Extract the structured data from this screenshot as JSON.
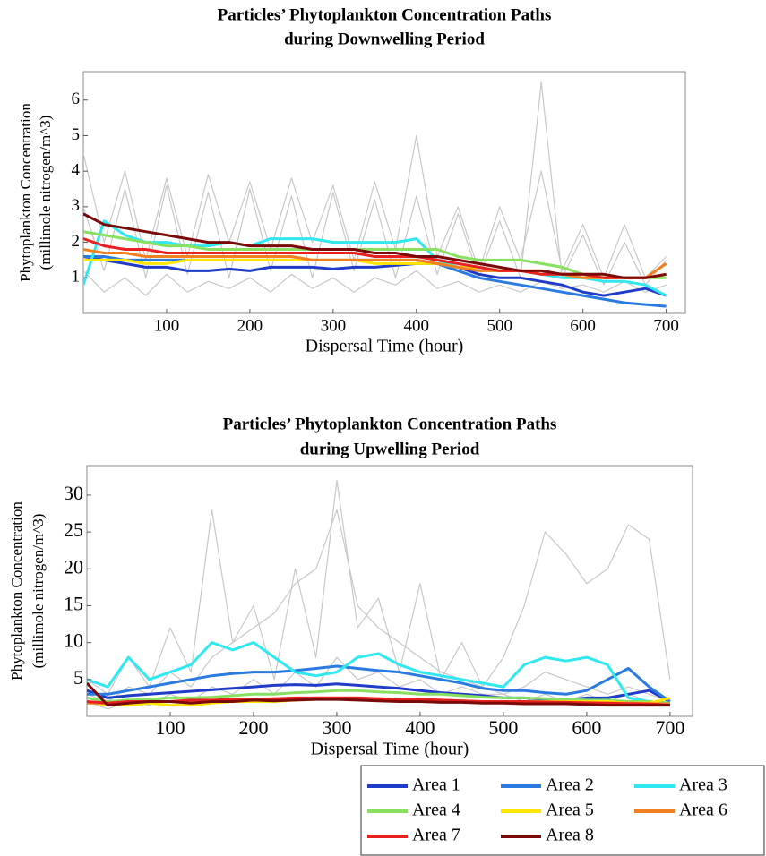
{
  "chart_data": [
    {
      "type": "line",
      "title": [
        "Particles’ Phytoplankton Concentration Paths",
        "during Downwelling Period"
      ],
      "xlabel": "Dispersal Time (hour)",
      "ylabel": [
        "Phytoplankton Concentration",
        "(millimole nitrogen/m^3)"
      ],
      "x": [
        0,
        25,
        50,
        75,
        100,
        125,
        150,
        175,
        200,
        225,
        250,
        275,
        300,
        325,
        350,
        375,
        400,
        425,
        450,
        475,
        500,
        525,
        550,
        575,
        600,
        625,
        650,
        675,
        700
      ],
      "xlim": [
        0,
        723
      ],
      "xticks": [
        100,
        200,
        300,
        400,
        500,
        600,
        700
      ],
      "ylim": [
        0,
        6.8
      ],
      "yticks": [
        1,
        2,
        3,
        4,
        5,
        6
      ],
      "legend": false,
      "series": [
        {
          "color": "#c8c8c8",
          "values": [
            3,
            1.2,
            3.5,
            1,
            3.6,
            1.1,
            3.4,
            1,
            3.5,
            1.2,
            3.3,
            1,
            3.4,
            1.2,
            3.2,
            1,
            3.3,
            1.1,
            2.8,
            1,
            2.6,
            1,
            6.5,
            1,
            2.2,
            0.8,
            2,
            0.8,
            1.5
          ]
        },
        {
          "color": "#c8c8c8",
          "values": [
            4.5,
            2,
            4,
            1.5,
            3.8,
            1.6,
            3.9,
            2,
            3.7,
            1.8,
            3.8,
            2,
            3.6,
            1.5,
            3.7,
            1.8,
            5,
            1.6,
            3,
            1.2,
            3,
            1.5,
            4,
            1.2,
            2.5,
            1,
            2.5,
            1,
            1.6
          ]
        },
        {
          "color": "#c8c8c8",
          "values": [
            1.2,
            0.6,
            1.0,
            0.5,
            1.1,
            0.6,
            0.9,
            0.7,
            1,
            0.6,
            1.1,
            0.7,
            1.0,
            0.6,
            1.0,
            0.8,
            1.2,
            0.7,
            0.9,
            0.6,
            0.8,
            0.6,
            0.9,
            0.7,
            0.8,
            0.6,
            0.9,
            0.6,
            0.8
          ]
        },
        {
          "name": "Area 1",
          "color": "#1f3cc8",
          "values": [
            1.6,
            1.5,
            1.4,
            1.3,
            1.3,
            1.2,
            1.2,
            1.25,
            1.2,
            1.3,
            1.3,
            1.3,
            1.25,
            1.3,
            1.3,
            1.35,
            1.4,
            1.4,
            1.3,
            1.1,
            1.0,
            1.0,
            0.9,
            0.8,
            0.6,
            0.5,
            0.6,
            0.7,
            0.5
          ]
        },
        {
          "name": "Area 2",
          "color": "#2a7be0",
          "values": [
            1.6,
            1.6,
            1.5,
            1.5,
            1.5,
            1.5,
            1.5,
            1.5,
            1.5,
            1.5,
            1.5,
            1.5,
            1.5,
            1.5,
            1.5,
            1.5,
            1.5,
            1.4,
            1.2,
            1.0,
            0.9,
            0.8,
            0.7,
            0.6,
            0.5,
            0.4,
            0.3,
            0.25,
            0.2
          ]
        },
        {
          "name": "Area 3",
          "color": "#30e8f0",
          "values": [
            0.8,
            2.6,
            2.2,
            2.0,
            2.0,
            1.9,
            1.9,
            2.0,
            1.9,
            2.1,
            2.1,
            2.1,
            2.0,
            2.0,
            2.0,
            2.0,
            2.1,
            1.5,
            1.3,
            1.3,
            1.2,
            1.2,
            1.1,
            1.0,
            1.0,
            0.9,
            0.9,
            0.8,
            0.5
          ]
        },
        {
          "name": "Area 4",
          "color": "#88e060",
          "values": [
            2.3,
            2.2,
            2.1,
            2.0,
            1.9,
            1.9,
            1.8,
            1.8,
            1.8,
            1.8,
            1.8,
            1.8,
            1.8,
            1.8,
            1.8,
            1.8,
            1.8,
            1.8,
            1.6,
            1.5,
            1.5,
            1.5,
            1.4,
            1.3,
            1.1,
            1.0,
            1.0,
            1.0,
            1.0
          ]
        },
        {
          "name": "Area 5",
          "color": "#ffe600",
          "values": [
            1.5,
            1.5,
            1.5,
            1.4,
            1.4,
            1.5,
            1.5,
            1.5,
            1.5,
            1.5,
            1.5,
            1.5,
            1.5,
            1.5,
            1.4,
            1.4,
            1.4,
            1.4,
            1.3,
            1.3,
            1.2,
            1.2,
            1.2,
            1.1,
            1.0,
            1.0,
            1.0,
            1.0,
            1.1
          ]
        },
        {
          "name": "Area 6",
          "color": "#f08020",
          "values": [
            1.8,
            1.7,
            1.7,
            1.6,
            1.6,
            1.6,
            1.6,
            1.6,
            1.6,
            1.6,
            1.6,
            1.5,
            1.5,
            1.5,
            1.5,
            1.5,
            1.5,
            1.4,
            1.3,
            1.2,
            1.2,
            1.2,
            1.1,
            1.1,
            1.0,
            1.0,
            1.0,
            1.0,
            1.4
          ]
        },
        {
          "name": "Area 7",
          "color": "#e82020",
          "values": [
            2.1,
            1.9,
            1.8,
            1.8,
            1.7,
            1.7,
            1.7,
            1.7,
            1.7,
            1.7,
            1.7,
            1.7,
            1.7,
            1.7,
            1.6,
            1.6,
            1.6,
            1.5,
            1.4,
            1.3,
            1.2,
            1.2,
            1.1,
            1.1,
            1.1,
            1.0,
            1.0,
            1.0,
            1.1
          ]
        },
        {
          "name": "Area 8",
          "color": "#7a0a0a",
          "values": [
            2.8,
            2.5,
            2.4,
            2.3,
            2.2,
            2.1,
            2.0,
            2.0,
            1.9,
            1.9,
            1.9,
            1.8,
            1.8,
            1.8,
            1.7,
            1.7,
            1.6,
            1.6,
            1.5,
            1.4,
            1.3,
            1.2,
            1.2,
            1.1,
            1.1,
            1.1,
            1.0,
            1.0,
            1.1
          ]
        }
      ]
    },
    {
      "type": "line",
      "title": [
        "Particles’ Phytoplankton Concentration Paths",
        "during Upwelling Period"
      ],
      "xlabel": "Dispersal Time (hour)",
      "ylabel": [
        "Phytoplankton Concentration",
        "(millimole nitrogen/m^3)"
      ],
      "x": [
        0,
        25,
        50,
        75,
        100,
        125,
        150,
        175,
        200,
        225,
        250,
        275,
        300,
        325,
        350,
        375,
        400,
        425,
        450,
        475,
        500,
        525,
        550,
        575,
        600,
        625,
        650,
        675,
        700
      ],
      "xlim": [
        0,
        727
      ],
      "xticks": [
        100,
        200,
        300,
        400,
        500,
        600,
        700
      ],
      "ylim": [
        0,
        34
      ],
      "yticks": [
        5,
        10,
        15,
        20,
        25,
        30
      ],
      "legend": "below-right",
      "series": [
        {
          "color": "#c8c8c8",
          "values": [
            5,
            3,
            8,
            4,
            12,
            6,
            28,
            10,
            15,
            5,
            20,
            8,
            32,
            12,
            16,
            6,
            18,
            5,
            10,
            4,
            8,
            15,
            25,
            22,
            18,
            20,
            26,
            24,
            5
          ]
        },
        {
          "color": "#c8c8c8",
          "values": [
            3,
            2,
            4,
            3,
            6,
            4,
            8,
            10,
            12,
            14,
            18,
            20,
            28,
            15,
            12,
            10,
            8,
            6,
            5,
            4,
            3,
            4,
            6,
            5,
            4,
            3,
            4,
            3,
            2
          ]
        },
        {
          "color": "#c8c8c8",
          "values": [
            2,
            1,
            2,
            1.5,
            3,
            2,
            4,
            3,
            5,
            3,
            6,
            4,
            8,
            5,
            6,
            4,
            5,
            3,
            4,
            3,
            3,
            2,
            3,
            2,
            3,
            2,
            3,
            2,
            2
          ]
        },
        {
          "name": "Area 1",
          "color": "#1f3cc8",
          "values": [
            3.5,
            2.5,
            2.8,
            3,
            3.2,
            3.4,
            3.6,
            3.8,
            4,
            4.2,
            4.3,
            4.2,
            4.4,
            4.2,
            4,
            3.8,
            3.5,
            3.2,
            3,
            2.8,
            2.5,
            2.5,
            2.3,
            2.2,
            2.5,
            2.5,
            3,
            3.5,
            2
          ]
        },
        {
          "name": "Area 2",
          "color": "#2a7be0",
          "values": [
            3,
            3,
            3.5,
            4,
            4.5,
            5,
            5.5,
            5.8,
            6,
            6,
            6.2,
            6.5,
            6.8,
            6.5,
            6.2,
            6,
            5.5,
            5,
            4.5,
            3.8,
            3.5,
            3.5,
            3.2,
            3.0,
            3.5,
            5,
            6.5,
            4,
            2
          ]
        },
        {
          "name": "Area 3",
          "color": "#30e8f0",
          "values": [
            5,
            4,
            8,
            5,
            6,
            7,
            10,
            9,
            10,
            8,
            6,
            5.5,
            6,
            8,
            8.5,
            7,
            6,
            5.5,
            5,
            4.5,
            4,
            7,
            8,
            7.5,
            8,
            7,
            2.5,
            2,
            1.5
          ]
        },
        {
          "name": "Area 4",
          "color": "#88e060",
          "values": [
            2.5,
            2,
            2.2,
            2.3,
            2.5,
            2.5,
            2.6,
            2.8,
            3,
            3,
            3.2,
            3.3,
            3.5,
            3.5,
            3.3,
            3.2,
            3,
            3,
            2.8,
            2.6,
            2.5,
            2.5,
            2.4,
            2.3,
            2.2,
            2.2,
            2,
            2,
            1.8
          ]
        },
        {
          "name": "Area 5",
          "color": "#ffe600",
          "values": [
            2,
            1.5,
            1.5,
            1.8,
            1.5,
            1.5,
            1.8,
            2,
            2,
            2,
            2.2,
            2.3,
            2.5,
            2.4,
            2.3,
            2.2,
            2.2,
            2.1,
            2,
            2,
            2,
            2,
            2,
            2,
            2,
            2,
            1.8,
            1.8,
            2.5
          ]
        },
        {
          "name": "Area 6",
          "color": "#f08020",
          "values": [
            1.8,
            1.8,
            2,
            2,
            2,
            2,
            2.2,
            2.2,
            2.3,
            2.3,
            2.4,
            2.5,
            2.5,
            2.5,
            2.4,
            2.3,
            2.2,
            2.2,
            2.1,
            2,
            2,
            2,
            2,
            1.9,
            1.9,
            1.8,
            1.8,
            1.7,
            1.7
          ]
        },
        {
          "name": "Area 7",
          "color": "#e82020",
          "values": [
            2,
            1.8,
            2,
            2,
            2,
            2.2,
            2.2,
            2.3,
            2.3,
            2.4,
            2.5,
            2.5,
            2.5,
            2.5,
            2.4,
            2.3,
            2.3,
            2.2,
            2.1,
            2,
            2,
            2,
            1.9,
            1.9,
            1.8,
            1.8,
            1.7,
            1.7,
            1.5
          ]
        },
        {
          "name": "Area 8",
          "color": "#7a0a0a",
          "values": [
            4.5,
            1.5,
            1.8,
            2,
            2,
            1.8,
            2,
            2,
            2.2,
            2.1,
            2.2,
            2.3,
            2.3,
            2.2,
            2.1,
            2,
            2,
            1.9,
            1.9,
            1.8,
            1.8,
            1.7,
            1.7,
            1.7,
            1.6,
            1.5,
            1.5,
            1.5,
            1.5
          ]
        }
      ]
    }
  ]
}
